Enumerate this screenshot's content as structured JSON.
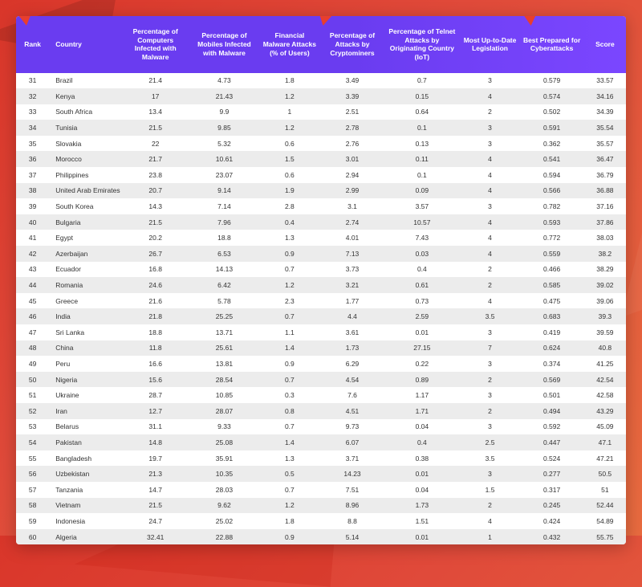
{
  "style": {
    "header_bg": "#6a3cf0",
    "page_gradient": [
      "#d9362a",
      "#e86b3f"
    ],
    "row_even_bg": "#ececec",
    "row_odd_bg": "#ffffff",
    "header_font_size_pt": 8.5,
    "body_font_size_pt": 8.5,
    "accent_triangle_color": "#e83e2e"
  },
  "table": {
    "columns": [
      "Rank",
      "Country",
      "Percentage of Computers Infected with Malware",
      "Percentage of Mobiles Infected with Malware",
      "Financial Malware Attacks (% of Users)",
      "Percentage of Attacks by Cryptominers",
      "Percentage of Telnet Attacks by Originating Country (IoT)",
      "Most Up-to-Date Legislation",
      "Best Prepared for Cyberattacks",
      "Score"
    ],
    "rows": [
      [
        "31",
        "Brazil",
        "21.4",
        "4.73",
        "1.8",
        "3.49",
        "0.7",
        "3",
        "0.579",
        "33.57"
      ],
      [
        "32",
        "Kenya",
        "17",
        "21.43",
        "1.2",
        "3.39",
        "0.15",
        "4",
        "0.574",
        "34.16"
      ],
      [
        "33",
        "South Africa",
        "13.4",
        "9.9",
        "1",
        "2.51",
        "0.64",
        "2",
        "0.502",
        "34.39"
      ],
      [
        "34",
        "Tunisia",
        "21.5",
        "9.85",
        "1.2",
        "2.78",
        "0.1",
        "3",
        "0.591",
        "35.54"
      ],
      [
        "35",
        "Slovakia",
        "22",
        "5.32",
        "0.6",
        "2.76",
        "0.13",
        "3",
        "0.362",
        "35.57"
      ],
      [
        "36",
        "Morocco",
        "21.7",
        "10.61",
        "1.5",
        "3.01",
        "0.11",
        "4",
        "0.541",
        "36.47"
      ],
      [
        "37",
        "Philippines",
        "23.8",
        "23.07",
        "0.6",
        "2.94",
        "0.1",
        "4",
        "0.594",
        "36.79"
      ],
      [
        "38",
        "United Arab Emirates",
        "20.7",
        "9.14",
        "1.9",
        "2.99",
        "0.09",
        "4",
        "0.566",
        "36.88"
      ],
      [
        "39",
        "South Korea",
        "14.3",
        "7.14",
        "2.8",
        "3.1",
        "3.57",
        "3",
        "0.782",
        "37.16"
      ],
      [
        "40",
        "Bulgaria",
        "21.5",
        "7.96",
        "0.4",
        "2.74",
        "10.57",
        "4",
        "0.593",
        "37.86"
      ],
      [
        "41",
        "Egypt",
        "20.2",
        "18.8",
        "1.3",
        "4.01",
        "7.43",
        "4",
        "0.772",
        "38.03"
      ],
      [
        "42",
        "Azerbaijan",
        "26.7",
        "6.53",
        "0.9",
        "7.13",
        "0.03",
        "4",
        "0.559",
        "38.2"
      ],
      [
        "43",
        "Ecuador",
        "16.8",
        "14.13",
        "0.7",
        "3.73",
        "0.4",
        "2",
        "0.466",
        "38.29"
      ],
      [
        "44",
        "Romania",
        "24.6",
        "6.42",
        "1.2",
        "3.21",
        "0.61",
        "2",
        "0.585",
        "39.02"
      ],
      [
        "45",
        "Greece",
        "21.6",
        "5.78",
        "2.3",
        "1.77",
        "0.73",
        "4",
        "0.475",
        "39.06"
      ],
      [
        "46",
        "India",
        "21.8",
        "25.25",
        "0.7",
        "4.4",
        "2.59",
        "3.5",
        "0.683",
        "39.3"
      ],
      [
        "47",
        "Sri Lanka",
        "18.8",
        "13.71",
        "1.1",
        "3.61",
        "0.01",
        "3",
        "0.419",
        "39.59"
      ],
      [
        "48",
        "China",
        "11.8",
        "25.61",
        "1.4",
        "1.73",
        "27.15",
        "7",
        "0.624",
        "40.8"
      ],
      [
        "49",
        "Peru",
        "16.6",
        "13.81",
        "0.9",
        "6.29",
        "0.22",
        "3",
        "0.374",
        "41.25"
      ],
      [
        "50",
        "Nigeria",
        "15.6",
        "28.54",
        "0.7",
        "4.54",
        "0.89",
        "2",
        "0.569",
        "42.54"
      ],
      [
        "51",
        "Ukraine",
        "28.7",
        "10.85",
        "0.3",
        "7.6",
        "1.17",
        "3",
        "0.501",
        "42.58"
      ],
      [
        "52",
        "Iran",
        "12.7",
        "28.07",
        "0.8",
        "4.51",
        "1.71",
        "2",
        "0.494",
        "43.29"
      ],
      [
        "53",
        "Belarus",
        "31.1",
        "9.33",
        "0.7",
        "9.73",
        "0.04",
        "3",
        "0.592",
        "45.09"
      ],
      [
        "54",
        "Pakistan",
        "14.8",
        "25.08",
        "1.4",
        "6.07",
        "0.4",
        "2.5",
        "0.447",
        "47.1"
      ],
      [
        "55",
        "Bangladesh",
        "19.7",
        "35.91",
        "1.3",
        "3.71",
        "0.38",
        "3.5",
        "0.524",
        "47.21"
      ],
      [
        "56",
        "Uzbekistan",
        "21.3",
        "10.35",
        "0.5",
        "14.23",
        "0.01",
        "3",
        "0.277",
        "50.5"
      ],
      [
        "57",
        "Tanzania",
        "14.7",
        "28.03",
        "0.7",
        "7.51",
        "0.04",
        "1.5",
        "0.317",
        "51"
      ],
      [
        "58",
        "Vietnam",
        "21.5",
        "9.62",
        "1.2",
        "8.96",
        "1.73",
        "2",
        "0.245",
        "52.44"
      ],
      [
        "59",
        "Indonesia",
        "24.7",
        "25.02",
        "1.8",
        "8.8",
        "1.51",
        "4",
        "0.424",
        "54.89"
      ],
      [
        "60",
        "Algeria",
        "32.41",
        "22.88",
        "0.9",
        "5.14",
        "0.01",
        "1",
        "0.432",
        "55.75"
      ]
    ]
  }
}
